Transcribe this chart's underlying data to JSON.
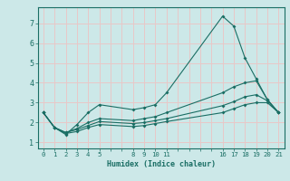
{
  "xlabel": "Humidex (Indice chaleur)",
  "bg_color": "#cce8e8",
  "grid_color": "#e8c8c8",
  "line_color": "#1a6e64",
  "xtick_labels": [
    "0",
    "1",
    "2",
    "3",
    "4",
    "5",
    "",
    "",
    "8",
    "9",
    "10",
    "11",
    "",
    "",
    "",
    "",
    "16",
    "17",
    "18",
    "19",
    "20",
    "21"
  ],
  "xtick_positions": [
    0,
    1,
    2,
    3,
    4,
    5,
    6,
    7,
    8,
    9,
    10,
    11,
    12,
    13,
    14,
    15,
    16,
    17,
    18,
    19,
    20,
    21
  ],
  "ytick_positions": [
    1,
    2,
    3,
    4,
    5,
    6,
    7
  ],
  "ylim": [
    0.7,
    7.8
  ],
  "xlim": [
    -0.5,
    21.5
  ],
  "lines": [
    {
      "x": [
        0,
        1,
        2,
        3,
        4,
        5,
        8,
        9,
        10,
        11,
        16,
        17,
        18,
        19,
        20,
        21
      ],
      "y": [
        2.5,
        1.75,
        1.4,
        1.9,
        2.5,
        2.9,
        2.65,
        2.75,
        2.9,
        3.5,
        7.35,
        6.85,
        5.25,
        4.2,
        3.15,
        2.5
      ]
    },
    {
      "x": [
        0,
        1,
        2,
        3,
        4,
        5,
        8,
        9,
        10,
        11,
        16,
        17,
        18,
        19,
        20,
        21
      ],
      "y": [
        2.5,
        1.75,
        1.5,
        1.7,
        2.0,
        2.2,
        2.1,
        2.2,
        2.3,
        2.5,
        3.5,
        3.8,
        4.0,
        4.1,
        3.15,
        2.5
      ]
    },
    {
      "x": [
        0,
        1,
        2,
        3,
        4,
        5,
        8,
        9,
        10,
        11,
        16,
        17,
        18,
        19,
        20,
        21
      ],
      "y": [
        2.5,
        1.75,
        1.5,
        1.65,
        1.85,
        2.05,
        1.95,
        2.0,
        2.1,
        2.2,
        2.85,
        3.05,
        3.3,
        3.4,
        3.1,
        2.5
      ]
    },
    {
      "x": [
        0,
        1,
        2,
        3,
        4,
        5,
        8,
        9,
        10,
        11,
        16,
        17,
        18,
        19,
        20,
        21
      ],
      "y": [
        2.5,
        1.75,
        1.45,
        1.55,
        1.75,
        1.9,
        1.8,
        1.85,
        1.95,
        2.05,
        2.5,
        2.7,
        2.9,
        3.0,
        3.0,
        2.5
      ]
    }
  ]
}
